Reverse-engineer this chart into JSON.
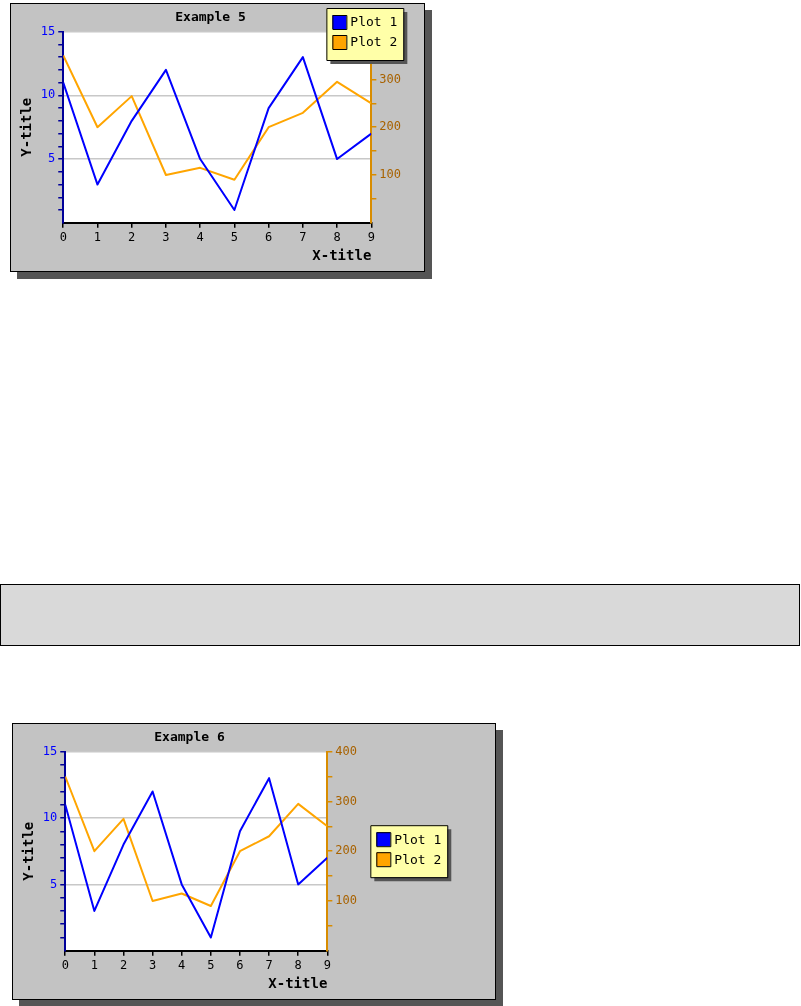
{
  "chart_data": [
    {
      "type": "line",
      "title": "Example 5",
      "xlabel": "X-title",
      "ylabel": "Y-title",
      "x": [
        0,
        1,
        2,
        3,
        4,
        5,
        6,
        7,
        8,
        9
      ],
      "series": [
        {
          "name": "Plot 1",
          "color": "#0000ff",
          "values": [
            11,
            3,
            8,
            12,
            5,
            1,
            9,
            13,
            5,
            7
          ]
        },
        {
          "name": "Plot 2",
          "color": "#ffa500",
          "axis": "y2",
          "values": [
            350,
            200,
            265,
            100,
            115,
            90,
            200,
            230,
            295,
            250
          ]
        }
      ],
      "xlim": [
        0,
        9
      ],
      "xticks": [
        0,
        1,
        2,
        3,
        4,
        5,
        6,
        7,
        8,
        9
      ],
      "ylim": [
        0,
        15
      ],
      "yticks": [
        {
          "value": 1,
          "label": null
        },
        {
          "value": 2,
          "label": null
        },
        {
          "value": 3,
          "label": null
        },
        {
          "value": 4,
          "label": null
        },
        5,
        {
          "value": 6,
          "label": null
        },
        {
          "value": 7,
          "label": null
        },
        {
          "value": 8,
          "label": null
        },
        {
          "value": 9,
          "label": null
        },
        10,
        {
          "value": 11,
          "label": null
        },
        {
          "value": 12,
          "label": null
        },
        {
          "value": 13,
          "label": null
        },
        {
          "value": 14,
          "label": null
        },
        15
      ],
      "y2lim": [
        0,
        400
      ],
      "y2ticks": [
        {
          "value": 50,
          "label": null
        },
        100,
        {
          "value": 150,
          "label": null
        },
        200,
        {
          "value": 250,
          "label": null
        },
        300,
        {
          "value": 350,
          "label": null
        },
        {
          "value": 400,
          "label": null
        }
      ],
      "grid": "y",
      "legend": "top right",
      "marker": "none"
    },
    {
      "type": "line",
      "title": "Example 6",
      "xlabel": "X-title",
      "ylabel": "Y-title",
      "x": [
        0,
        1,
        2,
        3,
        4,
        5,
        6,
        7,
        8,
        9
      ],
      "series": [
        {
          "name": "Plot 1",
          "color": "#0000ff",
          "values": [
            11,
            3,
            8,
            12,
            5,
            1,
            9,
            13,
            5,
            7
          ]
        },
        {
          "name": "Plot 2",
          "color": "#ffa500",
          "axis": "y2",
          "values": [
            350,
            200,
            265,
            100,
            115,
            90,
            200,
            230,
            295,
            250
          ]
        }
      ],
      "xlim": [
        0,
        9
      ],
      "xticks": [
        0,
        1,
        2,
        3,
        4,
        5,
        6,
        7,
        8,
        9
      ],
      "ylim": [
        0,
        15
      ],
      "yticks": [
        {
          "value": 1,
          "label": null
        },
        {
          "value": 2,
          "label": null
        },
        {
          "value": 3,
          "label": null
        },
        {
          "value": 4,
          "label": null
        },
        5,
        {
          "value": 6,
          "label": null
        },
        {
          "value": 7,
          "label": null
        },
        {
          "value": 8,
          "label": null
        },
        {
          "value": 9,
          "label": null
        },
        10,
        {
          "value": 11,
          "label": null
        },
        {
          "value": 12,
          "label": null
        },
        {
          "value": 13,
          "label": null
        },
        {
          "value": 14,
          "label": null
        },
        15
      ],
      "y2lim": [
        0,
        400
      ],
      "y2ticks": [
        {
          "value": 50,
          "label": null
        },
        100,
        {
          "value": 150,
          "label": null
        },
        200,
        {
          "value": 250,
          "label": null
        },
        300,
        {
          "value": 350,
          "label": null
        },
        400
      ],
      "grid": "y",
      "legend": "right",
      "marker": "none"
    }
  ]
}
